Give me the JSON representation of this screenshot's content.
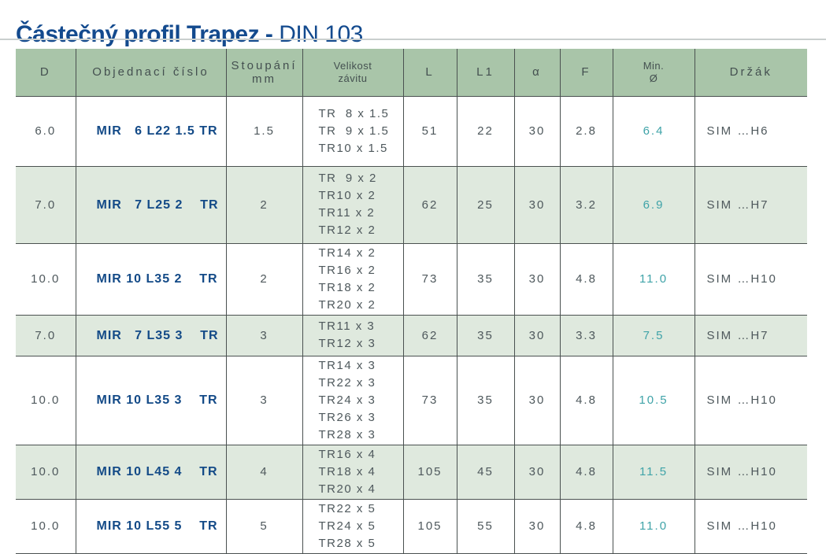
{
  "title": {
    "bold": "Částečný profil Trapez - ",
    "regular": "DIN 103"
  },
  "colors": {
    "title_navy": "#134a8e",
    "order_navy": "#134a87",
    "header_green": "#a9c5a9",
    "row_green": "#dfe9de",
    "min_teal": "#3fa3a8",
    "text_gray": "#4e585c",
    "border": "#4a5150"
  },
  "table": {
    "headers": {
      "d": "D",
      "order": "Objednací číslo",
      "pitch": "Stoupání\nmm",
      "thread": "Velikost\nzávitu",
      "l": "L",
      "l1": "L1",
      "alpha": "α",
      "f": "F",
      "min_d": "Min.\nØ",
      "holder": "Držák"
    },
    "rows": [
      {
        "d": "6.0",
        "order": "MIR   6 L22 1.5 TR",
        "pitch": "1.5",
        "thread": "TR  8 x 1.5\nTR  9 x 1.5\nTR10 x 1.5",
        "l": "51",
        "l1": "22",
        "alpha": "30",
        "f": "2.8",
        "min_d": "6.4",
        "holder": "SIM …H6"
      },
      {
        "d": "7.0",
        "order": "MIR   7 L25 2    TR",
        "pitch": "2",
        "thread": "TR  9 x 2\nTR10 x 2\nTR11 x 2\nTR12 x 2",
        "l": "62",
        "l1": "25",
        "alpha": "30",
        "f": "3.2",
        "min_d": "6.9",
        "holder": "SIM …H7"
      },
      {
        "d": "10.0",
        "order": "MIR 10 L35 2    TR",
        "pitch": "2",
        "thread": "TR14 x 2\nTR16 x 2\nTR18 x 2\nTR20 x 2",
        "l": "73",
        "l1": "35",
        "alpha": "30",
        "f": "4.8",
        "min_d": "11.0",
        "holder": "SIM …H10"
      },
      {
        "d": "7.0",
        "order": "MIR   7 L35 3    TR",
        "pitch": "3",
        "thread": "TR11 x 3\nTR12 x 3",
        "l": "62",
        "l1": "35",
        "alpha": "30",
        "f": "3.3",
        "min_d": "7.5",
        "holder": "SIM …H7"
      },
      {
        "d": "10.0",
        "order": "MIR 10 L35 3    TR",
        "pitch": "3",
        "thread": "TR14 x 3\nTR22 x 3\nTR24 x 3\nTR26 x 3\nTR28 x 3",
        "l": "73",
        "l1": "35",
        "alpha": "30",
        "f": "4.8",
        "min_d": "10.5",
        "holder": "SIM …H10"
      },
      {
        "d": "10.0",
        "order": "MIR 10 L45 4    TR",
        "pitch": "4",
        "thread": "TR16 x 4\nTR18 x 4\nTR20 x 4",
        "l": "105",
        "l1": "45",
        "alpha": "30",
        "f": "4.8",
        "min_d": "11.5",
        "holder": "SIM …H10"
      },
      {
        "d": "10.0",
        "order": "MIR 10 L55 5    TR",
        "pitch": "5",
        "thread": "TR22 x 5\nTR24 x 5\nTR28 x 5",
        "l": "105",
        "l1": "55",
        "alpha": "30",
        "f": "4.8",
        "min_d": "11.0",
        "holder": "SIM …H10"
      }
    ]
  }
}
